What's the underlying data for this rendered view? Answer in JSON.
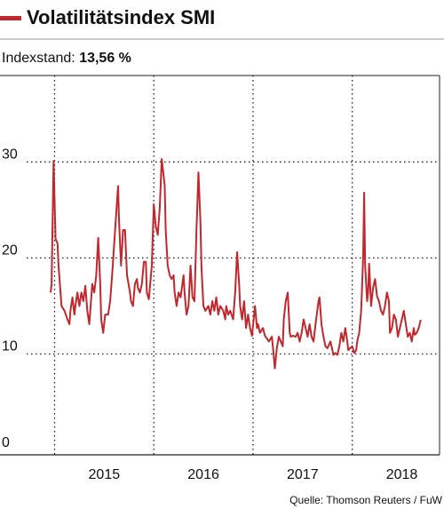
{
  "chart_data": {
    "type": "line",
    "title": "Volatilitätsindex SMI",
    "subtitle_label": "Indexstand:",
    "subtitle_value": "13,56 %",
    "source": "Quelle: Thomson Reuters / FuW",
    "color": "#c1272d",
    "grid": true,
    "xlim": [
      2014.45,
      2018.88
    ],
    "xgrid": [
      2015,
      2016,
      2017,
      2018
    ],
    "xticks": [
      {
        "value": 2015.5,
        "label": "2015"
      },
      {
        "value": 2016.5,
        "label": "2016"
      },
      {
        "value": 2017.5,
        "label": "2017"
      },
      {
        "value": 2018.5,
        "label": "2018"
      }
    ],
    "ylim": [
      -0.5,
      39
    ],
    "yticks": [
      0,
      10,
      20,
      30
    ],
    "x": [
      2014.96,
      2014.97,
      2014.99,
      2015.01,
      2015.03,
      2015.04,
      2015.07,
      2015.1,
      2015.13,
      2015.15,
      2015.16,
      2015.18,
      2015.2,
      2015.21,
      2015.23,
      2015.25,
      2015.27,
      2015.29,
      2015.31,
      2015.33,
      2015.35,
      2015.38,
      2015.4,
      2015.42,
      2015.44,
      2015.46,
      2015.47,
      2015.49,
      2015.51,
      2015.54,
      2015.56,
      2015.58,
      2015.61,
      2015.64,
      2015.65,
      2015.67,
      2015.69,
      2015.71,
      2015.73,
      2015.76,
      2015.77,
      2015.79,
      2015.81,
      2015.83,
      2015.84,
      2015.86,
      2015.88,
      2015.9,
      2015.92,
      2015.93,
      2015.95,
      2015.98,
      2016.0,
      2016.02,
      2016.04,
      2016.06,
      2016.08,
      2016.11,
      2016.12,
      2016.14,
      2016.16,
      2016.18,
      2016.2,
      2016.21,
      2016.23,
      2016.25,
      2016.27,
      2016.3,
      2016.31,
      2016.33,
      2016.35,
      2016.37,
      2016.39,
      2016.41,
      2016.43,
      2016.45,
      2016.47,
      2016.48,
      2016.5,
      2016.52,
      2016.55,
      2016.57,
      2016.59,
      2016.61,
      2016.63,
      2016.65,
      2016.67,
      2016.7,
      2016.72,
      2016.73,
      2016.75,
      2016.77,
      2016.8,
      2016.82,
      2016.84,
      2016.86,
      2016.87,
      2016.89,
      2016.91,
      2016.93,
      2016.95,
      2016.97,
      2016.99,
      2017.02,
      2017.04,
      2017.05,
      2017.07,
      2017.1,
      2017.12,
      2017.16,
      2017.19,
      2017.2,
      2017.22,
      2017.24,
      2017.26,
      2017.28,
      2017.3,
      2017.31,
      2017.33,
      2017.35,
      2017.37,
      2017.38,
      2017.4,
      2017.43,
      2017.45,
      2017.47,
      2017.49,
      2017.51,
      2017.53,
      2017.55,
      2017.57,
      2017.59,
      2017.61,
      2017.63,
      2017.66,
      2017.67,
      2017.69,
      2017.71,
      2017.73,
      2017.75,
      2017.78,
      2017.8,
      2017.81,
      2017.83,
      2017.85,
      2017.87,
      2017.89,
      2017.91,
      2017.93,
      2017.95,
      2017.96,
      2017.98,
      2018.0,
      2018.02,
      2018.04,
      2018.05,
      2018.07,
      2018.09,
      2018.11,
      2018.12,
      2018.13,
      2018.15,
      2018.16,
      2018.17,
      2018.19,
      2018.21,
      2018.23,
      2018.25,
      2018.27,
      2018.29,
      2018.31,
      2018.33,
      2018.35,
      2018.37,
      2018.38,
      2018.4,
      2018.42,
      2018.44,
      2018.46,
      2018.48,
      2018.5,
      2018.52,
      2018.54,
      2018.56,
      2018.58,
      2018.6,
      2018.62,
      2018.63,
      2018.65,
      2018.67,
      2018.69
    ],
    "values": [
      16.4,
      17.3,
      30.1,
      22.0,
      21.5,
      19.2,
      15.0,
      14.5,
      13.6,
      13.1,
      14.5,
      15.9,
      14.1,
      15.0,
      16.4,
      15.0,
      16.4,
      15.5,
      17.1,
      14.5,
      13.1,
      17.3,
      16.4,
      18.2,
      22.1,
      17.3,
      13.6,
      12.2,
      14.1,
      14.1,
      15.5,
      18.2,
      22.9,
      27.5,
      23.8,
      19.2,
      22.9,
      22.9,
      18.2,
      16.4,
      15.5,
      15.0,
      17.3,
      17.8,
      16.9,
      16.4,
      17.3,
      19.6,
      19.6,
      16.4,
      15.7,
      19.2,
      25.6,
      23.3,
      22.4,
      25.2,
      30.3,
      27.5,
      22.9,
      19.2,
      18.2,
      17.8,
      18.2,
      16.4,
      15.0,
      16.4,
      15.9,
      18.2,
      16.4,
      14.1,
      15.0,
      19.2,
      15.9,
      15.5,
      22.9,
      28.9,
      23.8,
      19.2,
      15.0,
      14.5,
      15.0,
      14.1,
      15.5,
      14.5,
      15.9,
      14.1,
      15.0,
      14.5,
      13.6,
      15.0,
      14.1,
      14.5,
      13.6,
      16.4,
      20.6,
      17.3,
      15.0,
      13.6,
      15.5,
      12.7,
      14.1,
      12.7,
      11.9,
      15.0,
      12.7,
      13.1,
      12.2,
      12.7,
      11.9,
      11.3,
      11.8,
      10.8,
      8.5,
      10.6,
      11.8,
      11.3,
      10.8,
      13.6,
      15.5,
      16.4,
      12.2,
      11.8,
      11.9,
      11.8,
      12.2,
      11.3,
      12.2,
      13.6,
      12.7,
      11.8,
      13.1,
      11.8,
      11.3,
      13.1,
      15.5,
      15.9,
      13.1,
      11.8,
      10.8,
      10.6,
      11.3,
      10.4,
      9.9,
      10.1,
      9.9,
      10.8,
      12.2,
      11.3,
      12.7,
      11.3,
      10.4,
      10.6,
      10.8,
      10.1,
      10.4,
      11.3,
      12.2,
      14.5,
      20.1,
      26.8,
      19.2,
      15.5,
      16.4,
      19.4,
      15.0,
      16.9,
      17.8,
      16.0,
      15.5,
      14.5,
      14.1,
      15.0,
      16.4,
      15.5,
      12.2,
      12.7,
      14.1,
      13.6,
      11.8,
      12.7,
      13.6,
      14.5,
      13.1,
      11.8,
      12.2,
      11.3,
      12.7,
      12.0,
      12.2,
      12.7,
      13.56
    ]
  }
}
